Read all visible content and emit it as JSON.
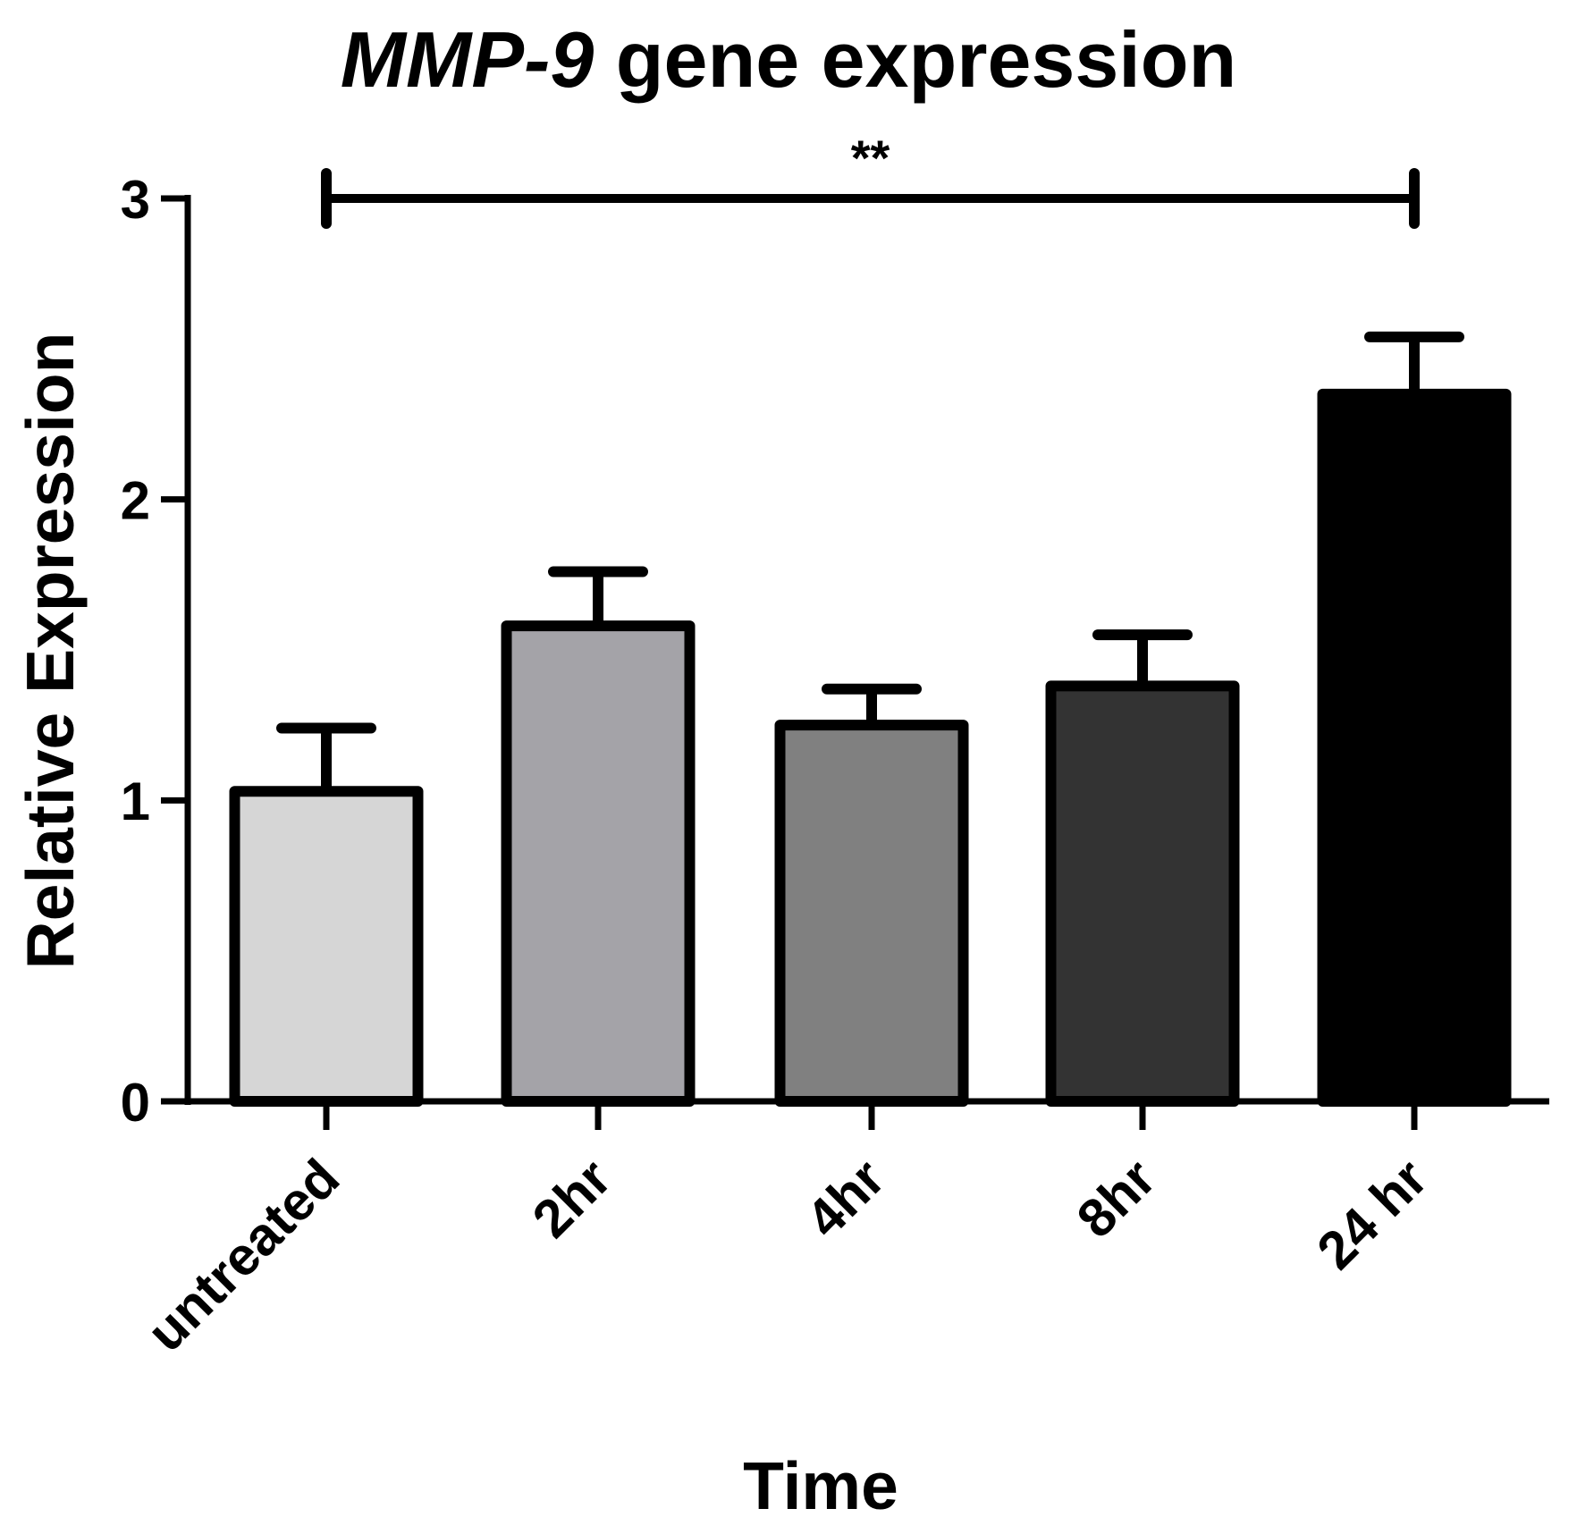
{
  "chart_data": {
    "type": "bar",
    "title_italic": "MMP-9",
    "title_rest": " gene expression",
    "xlabel": "Time",
    "ylabel": "Relative Expression",
    "categories": [
      "untreated",
      "2hr",
      "4hr",
      "8hr",
      "24 hr"
    ],
    "values": [
      1.03,
      1.58,
      1.25,
      1.38,
      2.35
    ],
    "errors": [
      0.21,
      0.18,
      0.12,
      0.17,
      0.19
    ],
    "colors": [
      "#d6d6d6",
      "#a4a3a8",
      "#808080",
      "#333333",
      "#000000"
    ],
    "ylim": [
      0,
      3
    ],
    "yticks": [
      "0",
      "1",
      "2",
      "3"
    ],
    "grid": false,
    "legend": "none",
    "significance": {
      "from": "untreated",
      "to": "24 hr",
      "label": "**"
    }
  }
}
